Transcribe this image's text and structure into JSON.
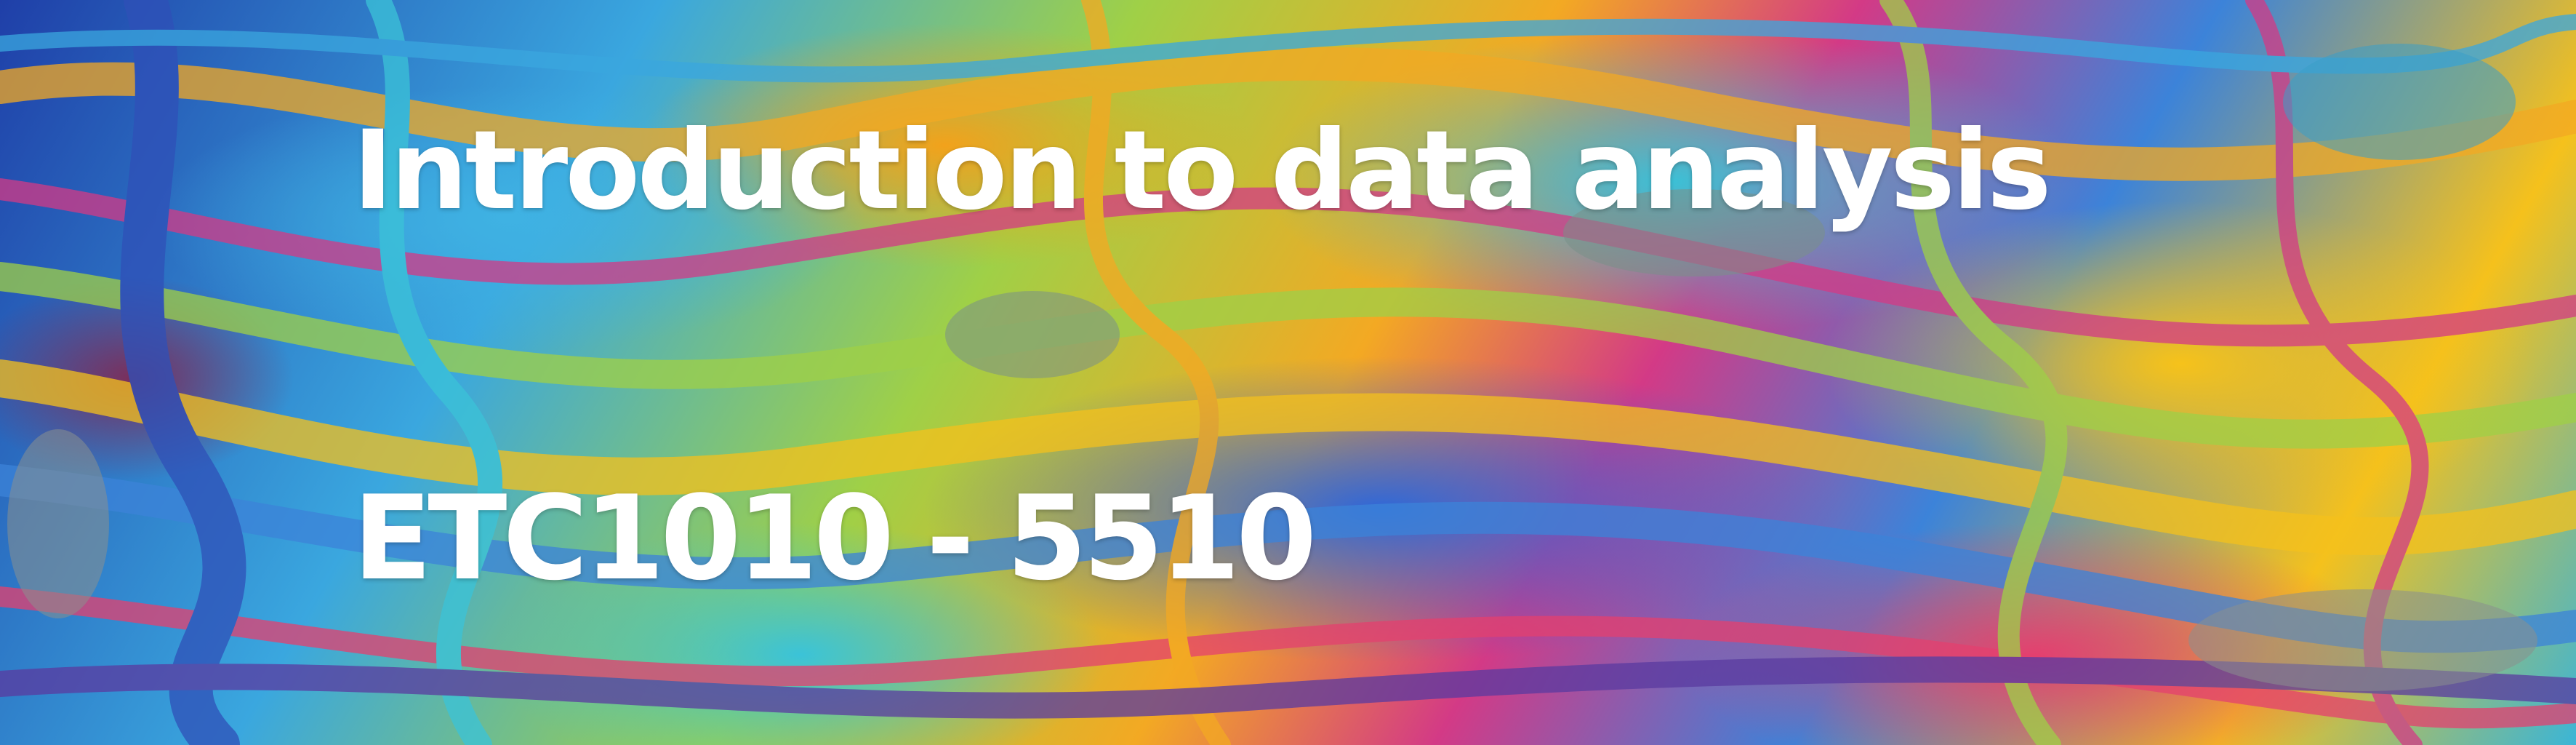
{
  "banner": {
    "title": "Introduction to data analysis",
    "course_code": "ETC1010 - 5510",
    "background": {
      "description_colors": [
        "#1f3fa8",
        "#3aa7df",
        "#9fd047",
        "#f3a923",
        "#d33a86",
        "#3c83d9",
        "#f5c11c",
        "#3bb5d6"
      ]
    },
    "text_color": "#ffffff"
  }
}
